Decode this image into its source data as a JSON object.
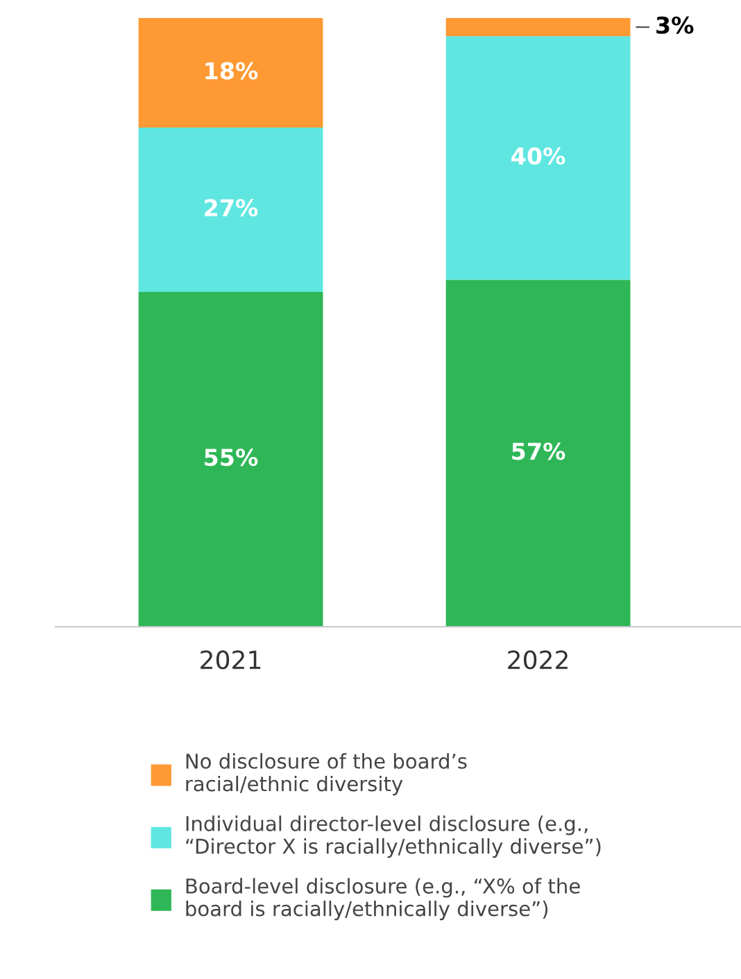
{
  "chart_data": {
    "type": "bar",
    "stacked": true,
    "categories": [
      "2021",
      "2022"
    ],
    "series": [
      {
        "name": "Board-level disclosure (e.g., “X% of the\nboard is racially/ethnically diverse”)",
        "color": "#2fb757",
        "values": [
          55,
          57
        ],
        "value_labels": [
          "55%",
          "57%"
        ]
      },
      {
        "name": "Individual director-level disclosure (e.g.,\n“Director X is racially/ethnically diverse”)",
        "color": "#60e6e1",
        "values": [
          27,
          40
        ],
        "value_labels": [
          "27%",
          "40%"
        ]
      },
      {
        "name": "No disclosure of the board’s\nracial/ethnic diversity",
        "color": "#ff9933",
        "values": [
          18,
          3
        ],
        "value_labels": [
          "18%",
          "3%"
        ]
      }
    ],
    "ylim": [
      0,
      100
    ],
    "tick_labels": "x",
    "grid": false,
    "legend": "bottom"
  }
}
